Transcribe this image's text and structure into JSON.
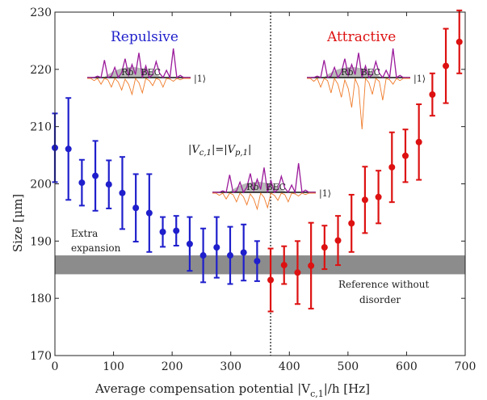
{
  "chart_data": {
    "type": "scatter",
    "xlabel": "Average compensation potential |V",
    "xlabel_sub": "c,1",
    "xlabel_tail": "|/h  [Hz]",
    "ylabel": "Size [μm]",
    "xlim": [
      0,
      700
    ],
    "ylim": [
      170,
      230
    ],
    "x_ticks": [
      0,
      100,
      200,
      300,
      400,
      500,
      600,
      700
    ],
    "y_ticks": [
      170,
      180,
      190,
      200,
      210,
      220,
      230
    ],
    "grid": false,
    "threshold_x": 368,
    "reference_band": {
      "low": 184.2,
      "high": 187.5,
      "color": "#8c8c8c"
    },
    "series": [
      {
        "name": "Repulsive",
        "color": "#1f1fcc",
        "x": [
          0,
          23,
          46,
          69,
          92,
          115,
          138,
          161,
          184,
          207,
          230,
          253,
          276,
          299,
          322,
          345
        ],
        "y": [
          206.3,
          206.1,
          200.2,
          201.4,
          199.9,
          198.4,
          195.8,
          194.9,
          191.6,
          191.8,
          189.5,
          187.5,
          188.9,
          187.5,
          188.0,
          186.5
        ],
        "err": [
          6.0,
          8.9,
          4.0,
          6.1,
          4.2,
          6.3,
          5.9,
          6.8,
          2.6,
          2.6,
          4.7,
          4.7,
          5.3,
          5.0,
          4.9,
          3.5
        ]
      },
      {
        "name": "Attractive",
        "color": "#dd1111",
        "x": [
          368,
          391,
          414,
          437,
          460,
          483,
          506,
          529,
          552,
          575,
          598,
          621,
          644,
          667,
          690
        ],
        "y": [
          183.2,
          185.8,
          184.5,
          185.7,
          188.9,
          190.1,
          193.1,
          197.2,
          197.7,
          202.9,
          204.9,
          207.3,
          215.6,
          220.6,
          224.8
        ],
        "err": [
          5.5,
          3.3,
          5.5,
          7.5,
          3.8,
          4.3,
          5.0,
          5.8,
          4.6,
          6.1,
          4.6,
          6.6,
          3.7,
          6.5,
          5.5
        ]
      }
    ],
    "annotations": {
      "repulsive": "Repulsive",
      "attractive": "Attractive",
      "extra_expansion_1": "Extra",
      "extra_expansion_2": "expansion",
      "reference_1": "Reference without",
      "reference_2": "disorder",
      "equality": "|V",
      "equality_sub1": "c,1",
      "equality_mid": "|=|V",
      "equality_sub2": "p,1",
      "equality_end": "|",
      "inset_rb": "Rb",
      "inset_bec": "BEC",
      "inset_ket": "|1⟩"
    },
    "colors": {
      "repulsive": "#1f1fcc",
      "attractive": "#dd1111",
      "band": "#8c8c8c",
      "purple": "#9b1a9b",
      "orange": "#f07a28",
      "cloud": "#b8b8b8"
    }
  }
}
